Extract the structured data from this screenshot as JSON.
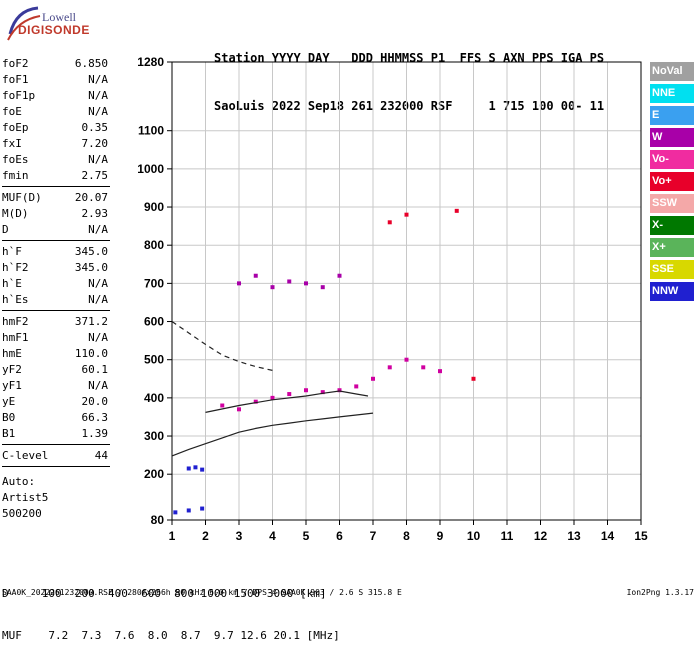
{
  "logo": {
    "line1": "Lowell",
    "line2": "DIGISONDE"
  },
  "header": {
    "labels": "Station YYYY DAY   DDD HHMMSS P1  FFS S AXN PPS IGA PS",
    "values": "SaoLuis 2022 Sep18 261 232000 RSF     1 715 100 00- 11"
  },
  "params": [
    {
      "k": "foF2",
      "v": "6.850"
    },
    {
      "k": "foF1",
      "v": "N/A"
    },
    {
      "k": "foF1p",
      "v": "N/A"
    },
    {
      "k": "foE",
      "v": "N/A"
    },
    {
      "k": "foEp",
      "v": "0.35"
    },
    {
      "k": "fxI",
      "v": "7.20"
    },
    {
      "k": "foEs",
      "v": "N/A"
    },
    {
      "k": "fmin",
      "v": "2.75"
    },
    {
      "k": "MUF(D)",
      "v": "20.07"
    },
    {
      "k": "M(D)",
      "v": "2.93"
    },
    {
      "k": "D",
      "v": "N/A"
    },
    {
      "k": "h`F",
      "v": "345.0"
    },
    {
      "k": "h`F2",
      "v": "345.0"
    },
    {
      "k": "h`E",
      "v": "N/A"
    },
    {
      "k": "h`Es",
      "v": "N/A"
    },
    {
      "k": "hmF2",
      "v": "371.2"
    },
    {
      "k": "hmF1",
      "v": "N/A"
    },
    {
      "k": "hmE",
      "v": "110.0"
    },
    {
      "k": "yF2",
      "v": "60.1"
    },
    {
      "k": "yF1",
      "v": "N/A"
    },
    {
      "k": "yE",
      "v": "20.0"
    },
    {
      "k": "B0",
      "v": "66.3"
    },
    {
      "k": "B1",
      "v": "1.39"
    },
    {
      "k": "C-level",
      "v": "44"
    }
  ],
  "auto": [
    "Auto:",
    "Artist5",
    "500200"
  ],
  "legend": [
    {
      "label": "NoVal",
      "color": "#a0a0a0"
    },
    {
      "label": "NNE",
      "color": "#00e0f0"
    },
    {
      "label": "E",
      "color": "#3aa0f0"
    },
    {
      "label": "W",
      "color": "#a800a8"
    },
    {
      "label": "Vo-",
      "color": "#f02ca0"
    },
    {
      "label": "Vo+",
      "color": "#e8002a"
    },
    {
      "label": "SSW",
      "color": "#f4a8a8"
    },
    {
      "label": "X-",
      "color": "#007800"
    },
    {
      "label": "X+",
      "color": "#5ab45a"
    },
    {
      "label": "SSE",
      "color": "#d8d800"
    },
    {
      "label": "NNW",
      "color": "#2020d0"
    }
  ],
  "bottom": {
    "row1": "D     100  200  400  600  800 1000 1500 3000 [km]",
    "row2": "MUF    7.2  7.3  7.6  8.0  8.7  9.7 12.6 20.1 [MHz]"
  },
  "footer": "SAA0K_2022261232000.RSF / 280fx256h 50 kHz 5.0 km / DPS-4 SAA0K 903 / 2.6 S 315.8 E",
  "version": "Ion2Png 1.3.17",
  "chart_data": {
    "type": "scatter",
    "xlabel": "",
    "ylabel": "",
    "xlim": [
      1,
      15
    ],
    "ylim": [
      80,
      1280
    ],
    "xticks": [
      1,
      2,
      3,
      4,
      5,
      6,
      7,
      8,
      9,
      10,
      11,
      12,
      13,
      14,
      15
    ],
    "yticks": [
      80,
      200,
      300,
      400,
      500,
      600,
      700,
      800,
      900,
      1000,
      1100,
      1280
    ],
    "grid": true,
    "series": [
      {
        "color": "#a800a8",
        "points": [
          [
            3.0,
            700
          ],
          [
            3.5,
            720
          ],
          [
            4.0,
            690
          ],
          [
            4.5,
            705
          ],
          [
            5.0,
            700
          ],
          [
            5.5,
            690
          ],
          [
            6.0,
            720
          ]
        ]
      },
      {
        "color": "#d000a0",
        "points": [
          [
            2.5,
            380
          ],
          [
            3.0,
            370
          ],
          [
            3.5,
            390
          ],
          [
            4.0,
            400
          ],
          [
            4.5,
            410
          ],
          [
            5.0,
            420
          ],
          [
            5.5,
            415
          ],
          [
            6.0,
            420
          ],
          [
            6.5,
            430
          ],
          [
            7.0,
            450
          ],
          [
            7.5,
            480
          ],
          [
            8.0,
            500
          ],
          [
            8.5,
            480
          ],
          [
            9.0,
            470
          ]
        ]
      },
      {
        "color": "#2020d0",
        "points": [
          [
            1.1,
            100
          ],
          [
            1.5,
            105
          ],
          [
            1.9,
            110
          ],
          [
            1.5,
            215
          ],
          [
            1.7,
            218
          ],
          [
            1.9,
            212
          ]
        ]
      },
      {
        "color": "#e8002a",
        "points": [
          [
            8.0,
            880
          ],
          [
            7.5,
            860
          ],
          [
            9.5,
            890
          ],
          [
            10.0,
            450
          ]
        ]
      }
    ],
    "curves": [
      {
        "name": "",
        "style": "solid",
        "points": [
          [
            1.0,
            248
          ],
          [
            1.5,
            265
          ],
          [
            2.0,
            280
          ],
          [
            2.5,
            295
          ],
          [
            3.0,
            310
          ],
          [
            3.5,
            320
          ],
          [
            4.0,
            328
          ],
          [
            4.5,
            334
          ],
          [
            5.0,
            340
          ],
          [
            5.5,
            345
          ],
          [
            6.0,
            350
          ],
          [
            6.5,
            355
          ],
          [
            7.0,
            360
          ]
        ]
      },
      {
        "name": "",
        "style": "solid",
        "points": [
          [
            2.0,
            362
          ],
          [
            3.0,
            380
          ],
          [
            4.0,
            395
          ],
          [
            5.0,
            405
          ],
          [
            5.5,
            412
          ],
          [
            6.0,
            418
          ],
          [
            6.5,
            410
          ],
          [
            6.85,
            405
          ]
        ]
      },
      {
        "name": "",
        "style": "dashed",
        "points": [
          [
            1.0,
            600
          ],
          [
            1.5,
            570
          ],
          [
            2.0,
            540
          ],
          [
            2.5,
            512
          ],
          [
            3.0,
            495
          ],
          [
            3.5,
            482
          ],
          [
            4.0,
            472
          ]
        ]
      }
    ]
  }
}
